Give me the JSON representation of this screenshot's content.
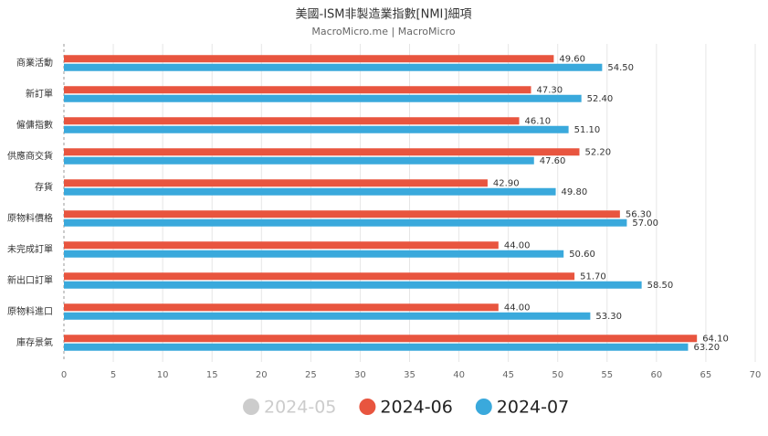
{
  "chart_data": {
    "type": "hbar",
    "title": "美國-ISM非製造業指數[NMI]細項",
    "subtitle": "MacroMicro.me | MacroMicro",
    "categories": [
      "商業活動",
      "新訂單",
      "僱傭指數",
      "供應商交貨",
      "存貨",
      "原物料價格",
      "未完成訂單",
      "新出口訂單",
      "原物料進口",
      "庫存景氣"
    ],
    "series": [
      {
        "name": "2024-05",
        "color": "#cccccc",
        "visible": false,
        "values": [
          null,
          null,
          null,
          null,
          null,
          null,
          null,
          null,
          null,
          null
        ]
      },
      {
        "name": "2024-06",
        "color": "#e8553f",
        "visible": true,
        "values": [
          49.6,
          47.3,
          46.1,
          52.2,
          42.9,
          56.3,
          44.0,
          51.7,
          44.0,
          64.1
        ],
        "value_labels": [
          "49.60",
          "47.30",
          "46.10",
          "52.20",
          "42.90",
          "56.30",
          "44.00",
          "51.70",
          "44.00",
          "64.10"
        ]
      },
      {
        "name": "2024-07",
        "color": "#3aa9dc",
        "visible": true,
        "values": [
          54.5,
          52.4,
          51.1,
          47.6,
          49.8,
          57.0,
          50.6,
          58.5,
          53.3,
          63.2
        ],
        "value_labels": [
          "54.50",
          "52.40",
          "51.10",
          "47.60",
          "49.80",
          "57.00",
          "50.60",
          "58.50",
          "53.30",
          "63.20"
        ]
      }
    ],
    "xlim": [
      0,
      70
    ],
    "xticks": [
      0,
      5,
      10,
      15,
      20,
      25,
      30,
      35,
      40,
      45,
      50,
      55,
      60,
      65,
      70
    ],
    "grid": true,
    "legend": "bottom"
  }
}
